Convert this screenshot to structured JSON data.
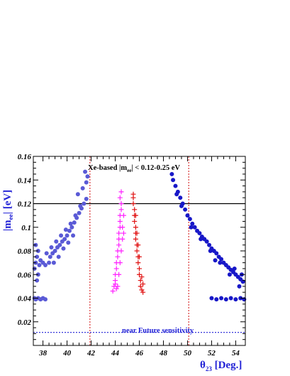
{
  "chart_data": {
    "type": "scatter",
    "title": "",
    "xlabel": "θ23 [Deg.]",
    "ylabel": "|mee| [eV]",
    "xlabel_parts": {
      "main": "θ",
      "sub": "23",
      "rest": " [Deg.]"
    },
    "ylabel_parts": {
      "pre": "|m",
      "sub": "ee",
      "rest": "| [eV]"
    },
    "xlim": [
      37.2,
      54.8
    ],
    "ylim": [
      0,
      0.16
    ],
    "x_ticks": [
      38,
      40,
      42,
      44,
      46,
      48,
      50,
      52,
      54
    ],
    "y_ticks": [
      0.02,
      0.04,
      0.06,
      0.08,
      0.1,
      0.12,
      0.14,
      0.16
    ],
    "y_tick_labels": [
      "0.02",
      "0.04",
      "0.06",
      "0.08",
      "0.1",
      "0.12",
      "0.14",
      "0.16"
    ],
    "grid": false,
    "legend": "none",
    "reference_lines": [
      {
        "orientation": "horizontal",
        "value": 0.12,
        "style": "solid",
        "color": "#000000"
      },
      {
        "orientation": "horizontal",
        "value": 0.011,
        "style": "dotted",
        "color": "#1f1fd6"
      },
      {
        "orientation": "vertical",
        "value": 41.9,
        "style": "dotted",
        "color": "#d62020"
      },
      {
        "orientation": "vertical",
        "value": 50.1,
        "style": "dotted",
        "color": "#d62020"
      }
    ],
    "annotations": {
      "top_pre": "Xe-based |m",
      "top_sub": "ee",
      "top_post": "| < 0.12-0.25 eV",
      "bottom": "near Future sensitivity"
    },
    "series": [
      {
        "marker": "circle",
        "color": "#5a5ad6",
        "points": [
          [
            37.3,
            0.065
          ],
          [
            37.4,
            0.07
          ],
          [
            37.5,
            0.075
          ],
          [
            37.6,
            0.08
          ],
          [
            37.4,
            0.085
          ],
          [
            37.7,
            0.068
          ],
          [
            37.8,
            0.072
          ],
          [
            38.0,
            0.07
          ],
          [
            38.2,
            0.068
          ],
          [
            38.5,
            0.07
          ],
          [
            38.6,
            0.075
          ],
          [
            38.8,
            0.078
          ],
          [
            39.0,
            0.08
          ],
          [
            39.2,
            0.083
          ],
          [
            39.4,
            0.085
          ],
          [
            39.6,
            0.088
          ],
          [
            39.8,
            0.09
          ],
          [
            40.0,
            0.093
          ],
          [
            40.2,
            0.097
          ],
          [
            40.4,
            0.1
          ],
          [
            40.6,
            0.104
          ],
          [
            40.8,
            0.108
          ],
          [
            41.0,
            0.112
          ],
          [
            41.2,
            0.116
          ],
          [
            41.4,
            0.12
          ],
          [
            41.6,
            0.124
          ],
          [
            40.9,
            0.128
          ],
          [
            41.3,
            0.133
          ],
          [
            41.6,
            0.138
          ],
          [
            41.7,
            0.143
          ],
          [
            41.5,
            0.147
          ],
          [
            38.3,
            0.078
          ],
          [
            38.7,
            0.083
          ],
          [
            39.1,
            0.088
          ],
          [
            39.5,
            0.093
          ],
          [
            39.9,
            0.098
          ],
          [
            40.3,
            0.103
          ],
          [
            40.7,
            0.11
          ],
          [
            41.1,
            0.118
          ],
          [
            38.9,
            0.07
          ],
          [
            39.3,
            0.075
          ],
          [
            39.7,
            0.082
          ],
          [
            40.1,
            0.087
          ],
          [
            40.5,
            0.093
          ],
          [
            37.6,
            0.06
          ],
          [
            37.5,
            0.055
          ],
          [
            37.3,
            0.04
          ],
          [
            37.4,
            0.039
          ],
          [
            37.6,
            0.04
          ],
          [
            37.8,
            0.039
          ],
          [
            38.0,
            0.04
          ],
          [
            38.2,
            0.039
          ]
        ]
      },
      {
        "marker": "plus",
        "color": "#ff20ff",
        "points": [
          [
            43.8,
            0.046
          ],
          [
            43.9,
            0.05
          ],
          [
            44.0,
            0.055
          ],
          [
            44.0,
            0.06
          ],
          [
            44.1,
            0.065
          ],
          [
            44.1,
            0.07
          ],
          [
            44.2,
            0.075
          ],
          [
            44.2,
            0.08
          ],
          [
            44.3,
            0.085
          ],
          [
            44.3,
            0.09
          ],
          [
            44.3,
            0.095
          ],
          [
            44.4,
            0.1
          ],
          [
            44.4,
            0.105
          ],
          [
            44.4,
            0.11
          ],
          [
            44.5,
            0.115
          ],
          [
            44.5,
            0.12
          ],
          [
            44.4,
            0.125
          ],
          [
            44.5,
            0.13
          ],
          [
            44.6,
            0.1
          ],
          [
            44.6,
            0.09
          ],
          [
            44.5,
            0.08
          ],
          [
            44.4,
            0.07
          ],
          [
            44.3,
            0.06
          ],
          [
            44.2,
            0.05
          ],
          [
            44.1,
            0.048
          ],
          [
            44.7,
            0.11
          ],
          [
            44.7,
            0.095
          ],
          [
            44.0,
            0.052
          ]
        ]
      },
      {
        "marker": "plus",
        "color": "#e01010",
        "points": [
          [
            45.5,
            0.125
          ],
          [
            45.5,
            0.12
          ],
          [
            45.6,
            0.115
          ],
          [
            45.6,
            0.11
          ],
          [
            45.6,
            0.105
          ],
          [
            45.7,
            0.1
          ],
          [
            45.7,
            0.095
          ],
          [
            45.7,
            0.09
          ],
          [
            45.8,
            0.085
          ],
          [
            45.8,
            0.08
          ],
          [
            45.9,
            0.075
          ],
          [
            45.9,
            0.07
          ],
          [
            46.0,
            0.065
          ],
          [
            46.0,
            0.06
          ],
          [
            46.1,
            0.055
          ],
          [
            46.1,
            0.05
          ],
          [
            46.2,
            0.047
          ],
          [
            46.3,
            0.045
          ],
          [
            45.9,
            0.085
          ],
          [
            45.8,
            0.095
          ],
          [
            46.0,
            0.075
          ],
          [
            46.2,
            0.058
          ],
          [
            45.7,
            0.11
          ],
          [
            45.5,
            0.128
          ],
          [
            46.3,
            0.052
          ]
        ]
      },
      {
        "marker": "circle",
        "color": "#1818c8",
        "points": [
          [
            48.7,
            0.145
          ],
          [
            48.8,
            0.14
          ],
          [
            49.0,
            0.135
          ],
          [
            49.2,
            0.13
          ],
          [
            49.4,
            0.125
          ],
          [
            49.6,
            0.12
          ],
          [
            49.8,
            0.115
          ],
          [
            50.0,
            0.11
          ],
          [
            50.2,
            0.107
          ],
          [
            50.4,
            0.103
          ],
          [
            50.6,
            0.1
          ],
          [
            50.8,
            0.097
          ],
          [
            51.0,
            0.095
          ],
          [
            51.2,
            0.092
          ],
          [
            51.4,
            0.09
          ],
          [
            51.6,
            0.088
          ],
          [
            51.8,
            0.085
          ],
          [
            52.0,
            0.082
          ],
          [
            52.2,
            0.08
          ],
          [
            52.4,
            0.078
          ],
          [
            52.6,
            0.075
          ],
          [
            52.8,
            0.073
          ],
          [
            53.0,
            0.07
          ],
          [
            53.2,
            0.068
          ],
          [
            53.4,
            0.066
          ],
          [
            53.6,
            0.064
          ],
          [
            53.8,
            0.062
          ],
          [
            54.0,
            0.06
          ],
          [
            54.2,
            0.058
          ],
          [
            54.4,
            0.056
          ],
          [
            54.6,
            0.054
          ],
          [
            49.1,
            0.128
          ],
          [
            49.5,
            0.118
          ],
          [
            50.3,
            0.1
          ],
          [
            51.1,
            0.09
          ],
          [
            51.9,
            0.08
          ],
          [
            52.7,
            0.07
          ],
          [
            53.5,
            0.06
          ],
          [
            54.3,
            0.05
          ],
          [
            53.9,
            0.065
          ],
          [
            54.5,
            0.06
          ],
          [
            52.3,
            0.072
          ],
          [
            52.0,
            0.04
          ],
          [
            52.4,
            0.039
          ],
          [
            52.8,
            0.04
          ],
          [
            53.2,
            0.039
          ],
          [
            53.6,
            0.04
          ],
          [
            54.0,
            0.039
          ],
          [
            54.4,
            0.04
          ],
          [
            54.7,
            0.039
          ]
        ]
      }
    ]
  }
}
